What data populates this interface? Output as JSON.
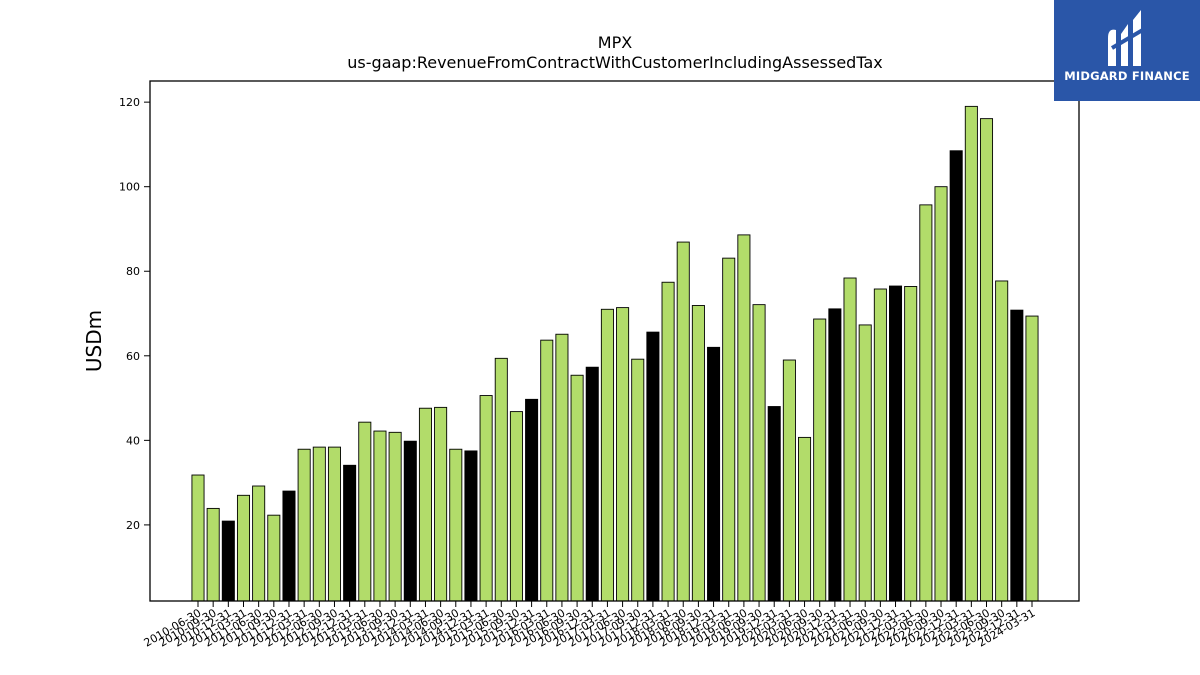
{
  "brand": {
    "name": "MIDGARD FINANCE",
    "icon": "midgard-logo-icon",
    "bg_color": "#2a56a8"
  },
  "chart_data": {
    "type": "bar",
    "title": "MPX",
    "subtitle": "us-gaap:RevenueFromContractWithCustomerIncludingAssessedTax",
    "xlabel": "",
    "ylabel": "USDm",
    "ylim": [
      2,
      125
    ],
    "yticks": [
      20,
      40,
      60,
      80,
      100,
      120
    ],
    "grid": false,
    "colors": {
      "quarter": "#b2dc6a",
      "fiscal_year_end": "#000000"
    },
    "categories": [
      "2010-06-30",
      "2010-09-30",
      "2010-12-31",
      "2011-03-31",
      "2011-06-30",
      "2011-09-30",
      "2011-12-31",
      "2012-03-31",
      "2012-06-30",
      "2012-09-30",
      "2012-12-31",
      "2013-03-31",
      "2013-06-30",
      "2013-09-30",
      "2013-12-31",
      "2014-03-31",
      "2014-06-30",
      "2014-09-30",
      "2014-12-31",
      "2015-03-31",
      "2015-06-30",
      "2015-09-30",
      "2015-12-31",
      "2016-03-31",
      "2016-06-30",
      "2016-09-30",
      "2016-12-31",
      "2017-03-31",
      "2017-06-30",
      "2017-09-30",
      "2017-12-31",
      "2018-03-31",
      "2018-06-30",
      "2018-09-30",
      "2018-12-31",
      "2019-03-31",
      "2019-06-30",
      "2019-09-30",
      "2019-12-31",
      "2020-03-31",
      "2020-06-30",
      "2020-09-30",
      "2020-12-31",
      "2021-03-31",
      "2021-06-30",
      "2021-09-30",
      "2021-12-31",
      "2022-03-31",
      "2022-06-30",
      "2022-09-30",
      "2022-12-31",
      "2023-03-31",
      "2023-06-30",
      "2023-09-30",
      "2023-12-31",
      "2024-03-31"
    ],
    "values": [
      31.8,
      23.9,
      20.9,
      27.0,
      29.2,
      22.3,
      28.0,
      37.9,
      38.4,
      38.4,
      34.1,
      44.3,
      42.2,
      41.9,
      39.8,
      47.6,
      47.8,
      37.9,
      37.5,
      50.6,
      59.4,
      46.8,
      49.7,
      63.7,
      65.1,
      55.4,
      57.3,
      71.0,
      71.4,
      59.2,
      65.6,
      77.4,
      86.9,
      71.9,
      62.0,
      83.1,
      88.6,
      72.1,
      48.0,
      59.0,
      40.7,
      68.7,
      71.1,
      78.4,
      67.3,
      75.8,
      76.5,
      76.4,
      95.7,
      100.0,
      108.5,
      119.0,
      116.1,
      77.7,
      70.8,
      69.4
    ],
    "highlight": [
      false,
      false,
      true,
      false,
      false,
      false,
      true,
      false,
      false,
      false,
      true,
      false,
      false,
      false,
      true,
      false,
      false,
      false,
      true,
      false,
      false,
      false,
      true,
      false,
      false,
      false,
      true,
      false,
      false,
      false,
      true,
      false,
      false,
      false,
      true,
      false,
      false,
      false,
      true,
      false,
      false,
      false,
      true,
      false,
      false,
      false,
      true,
      false,
      false,
      false,
      true,
      false,
      false,
      false,
      true,
      false
    ]
  }
}
